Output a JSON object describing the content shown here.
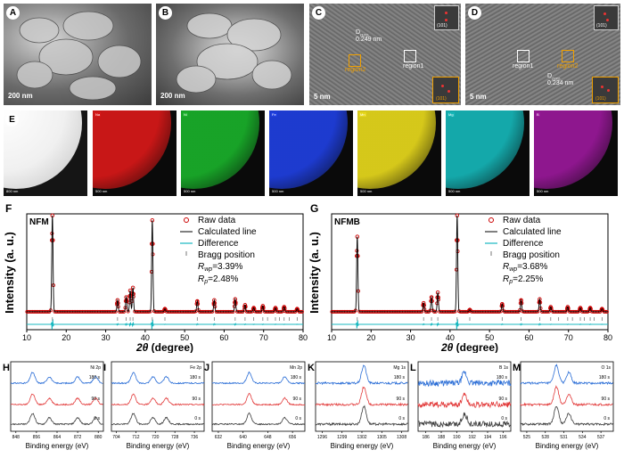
{
  "panels": {
    "A": {
      "label": "A",
      "scale": "200 nm"
    },
    "B": {
      "label": "B",
      "scale": "200 nm"
    },
    "C": {
      "label": "C",
      "scale": "5 nm",
      "d_spacing": "0.249 nm",
      "d_sym": "D",
      "d_sub": "(101)",
      "region1": "region1",
      "region2": "region2",
      "fft_top": "(101)",
      "fft_bottom": "(101)"
    },
    "D": {
      "label": "D",
      "scale": "5 nm",
      "d_spacing": "0.234 nm",
      "d_sym": "D",
      "d_sub": "(101)",
      "region1": "region1",
      "region2": "region2",
      "fft_top": "(101)",
      "fft_bottom": "(101)"
    },
    "E": {
      "label": "E",
      "scale_main": "800 nm",
      "maps": [
        {
          "element": "Na",
          "scale": "500 nm",
          "color": "#d81818"
        },
        {
          "element": "Ni",
          "scale": "500 nm",
          "color": "#19b02a"
        },
        {
          "element": "Fe",
          "scale": "500 nm",
          "color": "#1f3fe0"
        },
        {
          "element": "Mn",
          "scale": "500 nm",
          "color": "#e7d81c"
        },
        {
          "element": "Mg",
          "scale": "500 nm",
          "color": "#15b6b8"
        },
        {
          "element": "B",
          "scale": "500 nm",
          "color": "#9a189a"
        }
      ]
    }
  },
  "xrd": {
    "ylabel": "Intensity (a. u.)",
    "xlabel_theta": "2θ",
    "xlabel_unit": " (degree)",
    "legend": [
      "Raw data",
      "Calculated line",
      "Difference",
      "Bragg position"
    ],
    "colors": {
      "raw": "#cc0000",
      "calc": "#000000",
      "diff": "#18b8c0",
      "bragg": "#777777"
    },
    "F": {
      "label": "F",
      "sample": "NFM",
      "rwp_label": "R",
      "rwp_sub": "wp",
      "rwp_val": "=3.39%",
      "rp_label": "R",
      "rp_sub": "p",
      "rp_val": "=2.48%"
    },
    "G": {
      "label": "G",
      "sample": "NFMB",
      "rwp_label": "R",
      "rwp_sub": "wp",
      "rwp_val": "=3.68%",
      "rp_label": "R",
      "rp_sub": "p",
      "rp_val": "=2.25%"
    }
  },
  "chart_data": [
    {
      "type": "line",
      "title": "NFM",
      "xlabel": "2θ (degree)",
      "ylabel": "Intensity (a. u.)",
      "xlim": [
        10,
        80
      ],
      "xticks": [
        10,
        20,
        30,
        40,
        50,
        60,
        70,
        80
      ],
      "peaks": [
        {
          "x": 16.5,
          "y": 1.0
        },
        {
          "x": 33.0,
          "y": 0.12
        },
        {
          "x": 35.2,
          "y": 0.15
        },
        {
          "x": 36.2,
          "y": 0.22
        },
        {
          "x": 36.9,
          "y": 0.25
        },
        {
          "x": 41.8,
          "y": 0.95
        },
        {
          "x": 45.0,
          "y": 0.03
        },
        {
          "x": 53.2,
          "y": 0.11
        },
        {
          "x": 57.5,
          "y": 0.12
        },
        {
          "x": 62.8,
          "y": 0.13
        },
        {
          "x": 65.3,
          "y": 0.07
        },
        {
          "x": 67.5,
          "y": 0.04
        },
        {
          "x": 69.8,
          "y": 0.06
        },
        {
          "x": 73.0,
          "y": 0.04
        },
        {
          "x": 75.2,
          "y": 0.05
        },
        {
          "x": 78.5,
          "y": 0.03
        }
      ],
      "bragg": [
        16.5,
        33.0,
        35.2,
        36.2,
        36.9,
        41.8,
        45.0,
        53.2,
        57.5,
        62.8,
        65.3,
        67.5,
        69.8,
        71.0,
        73.0,
        74.0,
        75.2,
        76.5,
        78.5
      ]
    },
    {
      "type": "line",
      "title": "NFMB",
      "xlabel": "2θ (degree)",
      "ylabel": "Intensity (a. u.)",
      "xlim": [
        10,
        80
      ],
      "xticks": [
        10,
        20,
        30,
        40,
        50,
        60,
        70,
        80
      ],
      "peaks": [
        {
          "x": 16.5,
          "y": 0.78
        },
        {
          "x": 33.3,
          "y": 0.09
        },
        {
          "x": 35.3,
          "y": 0.15
        },
        {
          "x": 36.9,
          "y": 0.2
        },
        {
          "x": 41.8,
          "y": 1.0
        },
        {
          "x": 45.0,
          "y": 0.02
        },
        {
          "x": 53.2,
          "y": 0.08
        },
        {
          "x": 58.0,
          "y": 0.12
        },
        {
          "x": 62.7,
          "y": 0.13
        },
        {
          "x": 65.5,
          "y": 0.05
        },
        {
          "x": 69.8,
          "y": 0.05
        },
        {
          "x": 73.0,
          "y": 0.04
        },
        {
          "x": 75.5,
          "y": 0.04
        },
        {
          "x": 78.5,
          "y": 0.03
        }
      ],
      "bragg": [
        16.5,
        33.3,
        35.3,
        36.9,
        41.8,
        45.0,
        53.2,
        58.0,
        62.7,
        65.5,
        67.5,
        69.8,
        71.0,
        73.0,
        74.0,
        75.5,
        76.5,
        78.5
      ]
    },
    {
      "type": "line",
      "panel": "H",
      "title": "Ni 2p",
      "xlabel": "Binding energy (eV)",
      "xlim": [
        846,
        882
      ],
      "xticks": [
        848,
        856,
        864,
        872,
        880
      ],
      "peaks": [
        854.5,
        861,
        872,
        879
      ],
      "series": [
        "180 s",
        "90 s",
        "0 s"
      ]
    },
    {
      "type": "line",
      "panel": "I",
      "title": "Fe 2p",
      "xlabel": "Binding energy (eV)",
      "xlim": [
        702,
        740
      ],
      "xticks": [
        704,
        712,
        720,
        728,
        736
      ],
      "peaks": [
        711,
        719,
        724.5
      ],
      "series": [
        "180 s",
        "90 s",
        "0 s"
      ]
    },
    {
      "type": "line",
      "panel": "J",
      "title": "Mn 2p",
      "xlabel": "Binding energy (eV)",
      "xlim": [
        630,
        660
      ],
      "xticks": [
        632,
        640,
        648,
        656
      ],
      "peaks": [
        642,
        653.5
      ],
      "series": [
        "180 s",
        "90 s",
        "0 s"
      ]
    },
    {
      "type": "line",
      "panel": "K",
      "title": "Mg 1s",
      "xlabel": "Binding energy (eV)",
      "xlim": [
        1295,
        1309
      ],
      "xticks": [
        1296,
        1299,
        1302,
        1305,
        1308
      ],
      "peaks": [
        1302.3
      ],
      "series": [
        "180 s",
        "90 s",
        "0 s"
      ]
    },
    {
      "type": "line",
      "panel": "L",
      "title": "B 1s",
      "xlabel": "Binding energy (eV)",
      "xlim": [
        185,
        197
      ],
      "xticks": [
        186,
        188,
        190,
        192,
        194,
        196
      ],
      "peaks": [
        191
      ],
      "series": [
        "180 s",
        "90 s",
        "0 s"
      ]
    },
    {
      "type": "line",
      "panel": "M",
      "title": "O 1s",
      "xlabel": "Binding energy (eV)",
      "xlim": [
        524,
        539
      ],
      "xticks": [
        525,
        528,
        531,
        534,
        537
      ],
      "peaks": [
        529.8,
        531.8
      ],
      "series": [
        "180 s",
        "90 s",
        "0 s"
      ]
    }
  ],
  "xps": {
    "xlabel": "Binding energy (eV)",
    "colors": [
      "#2a6dd6",
      "#e23a3a",
      "#3a3a3a"
    ],
    "series_labels": [
      "180 s",
      "90 s",
      "0 s"
    ],
    "panels": [
      {
        "label": "H",
        "title": "Ni 2p",
        "ticks": [
          "848",
          "856",
          "864",
          "872",
          "880"
        ]
      },
      {
        "label": "I",
        "title": "Fe 2p",
        "ticks": [
          "704",
          "712",
          "720",
          "728",
          "736"
        ]
      },
      {
        "label": "J",
        "title": "Mn 2p",
        "ticks": [
          "632",
          "640",
          "648",
          "656"
        ]
      },
      {
        "label": "K",
        "title": "Mg 1s",
        "ticks": [
          "1296",
          "1299",
          "1302",
          "1305",
          "1308"
        ]
      },
      {
        "label": "L",
        "title": "B 1s",
        "ticks": [
          "186",
          "188",
          "190",
          "192",
          "194",
          "196"
        ]
      },
      {
        "label": "M",
        "title": "O 1s",
        "ticks": [
          "525",
          "528",
          "531",
          "534",
          "537"
        ]
      }
    ]
  }
}
